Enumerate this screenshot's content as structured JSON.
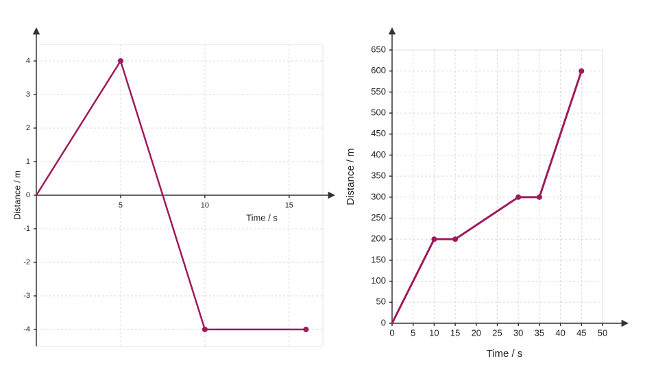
{
  "chart_data": [
    {
      "type": "line",
      "x_label": "Time / s",
      "y_label": "Distance / m",
      "x": [
        0,
        5,
        10,
        16
      ],
      "values": [
        0,
        4,
        -4,
        -4
      ],
      "color": "#a0195c",
      "xlim": [
        0,
        17
      ],
      "ylim": [
        -4.5,
        4.5
      ],
      "xticks": [
        5,
        10,
        15
      ],
      "yticks": [
        -4,
        -3,
        -2,
        -1,
        0,
        1,
        2,
        3,
        4
      ],
      "grid": true
    },
    {
      "type": "line",
      "x_label": "Time / s",
      "y_label": "Distance / m",
      "x": [
        0,
        10,
        15,
        30,
        35,
        45
      ],
      "values": [
        0,
        200,
        200,
        300,
        300,
        600
      ],
      "color": "#a0195c",
      "xlim": [
        0,
        50
      ],
      "ylim": [
        0,
        650
      ],
      "xticks": [
        0,
        5,
        10,
        15,
        20,
        25,
        30,
        35,
        40,
        45,
        50
      ],
      "yticks": [
        0,
        50,
        100,
        150,
        200,
        250,
        300,
        350,
        400,
        450,
        500,
        550,
        600,
        650
      ],
      "grid": true
    }
  ]
}
